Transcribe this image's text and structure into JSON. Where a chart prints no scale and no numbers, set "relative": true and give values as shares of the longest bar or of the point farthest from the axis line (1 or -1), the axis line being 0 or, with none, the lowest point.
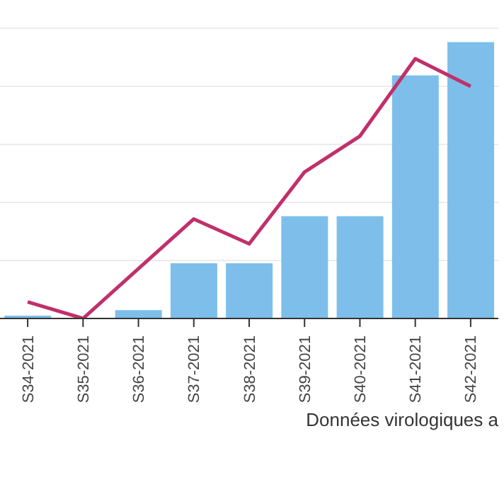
{
  "chart_data": {
    "type": "bar",
    "relative": true,
    "xlabel": "Données virologiques a",
    "categories": [
      "S34-2021",
      "S35-2021",
      "S36-2021",
      "S37-2021",
      "S38-2021",
      "S39-2021",
      "S40-2021",
      "S41-2021",
      "S42-2021"
    ],
    "series": [
      {
        "color": "#7dbfea",
        "values": [
          0.01,
          0,
          0.03,
          0.2,
          0.2,
          0.37,
          0.37,
          0.88,
          1
        ]
      },
      {
        "type": "line",
        "color": "#c0306a",
        "values": [
          0.06,
          0,
          0.18,
          0.36,
          0.27,
          0.53,
          0.66,
          0.94,
          0.84
        ]
      }
    ],
    "grid": "y"
  }
}
